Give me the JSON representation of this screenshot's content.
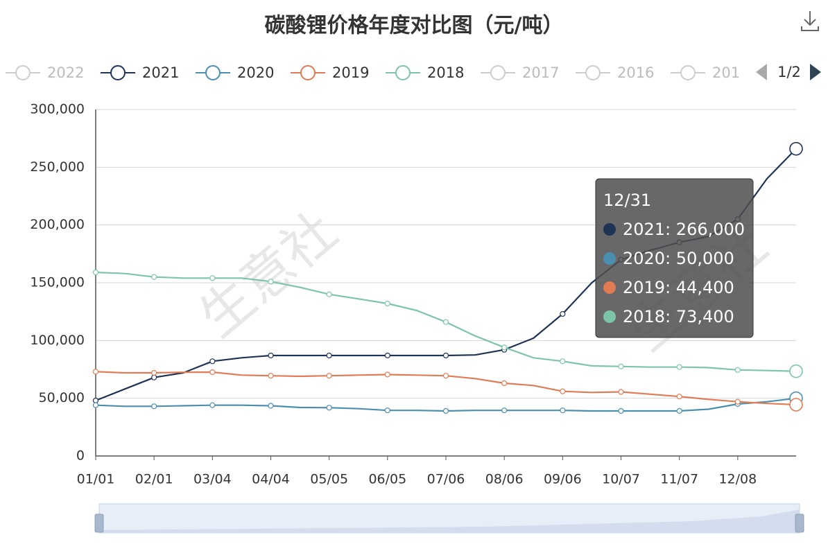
{
  "chart_data": {
    "type": "line",
    "title": "碳酸锂价格年度对比图（元/吨）",
    "categories": [
      "01/01",
      null,
      "02/01",
      null,
      "03/04",
      null,
      "04/04",
      null,
      "05/05",
      null,
      "06/05",
      null,
      "07/06",
      null,
      "08/06",
      null,
      "09/06",
      null,
      "10/07",
      null,
      "11/07",
      null,
      "12/08",
      null,
      "12/31"
    ],
    "series": [
      {
        "name": "2022",
        "color": "#cccccc",
        "visible": false
      },
      {
        "name": "2021",
        "color": "#1f3354",
        "visible": true,
        "values": [
          48000,
          58000,
          68000,
          72000,
          82000,
          85000,
          87000,
          87000,
          87000,
          87000,
          87000,
          87000,
          87000,
          87500,
          92000,
          102000,
          123000,
          150000,
          170000,
          178000,
          185000,
          190000,
          205000,
          240000,
          266000
        ]
      },
      {
        "name": "2020",
        "color": "#4a8fb0",
        "visible": true,
        "values": [
          44000,
          43000,
          43000,
          43500,
          44000,
          44000,
          43500,
          42000,
          41800,
          41000,
          39500,
          39500,
          39000,
          39500,
          39500,
          39500,
          39500,
          39000,
          39000,
          39000,
          39000,
          40500,
          45000,
          47000,
          50000
        ]
      },
      {
        "name": "2019",
        "color": "#e07b54",
        "visible": true,
        "values": [
          73000,
          72000,
          72000,
          72500,
          72600,
          70000,
          69500,
          69000,
          69500,
          70000,
          70500,
          70000,
          69500,
          67000,
          63000,
          61000,
          56000,
          55000,
          55500,
          53500,
          51500,
          49000,
          47000,
          45500,
          44400
        ]
      },
      {
        "name": "2018",
        "color": "#7cc5a9",
        "visible": true,
        "values": [
          159000,
          158000,
          155000,
          154000,
          154000,
          154000,
          151000,
          146000,
          140000,
          136000,
          132000,
          126000,
          116000,
          104000,
          94000,
          85000,
          82000,
          78000,
          77500,
          77000,
          77000,
          76500,
          74500,
          74000,
          73400
        ]
      },
      {
        "name": "2017",
        "color": "#cccccc",
        "visible": false
      },
      {
        "name": "2016",
        "color": "#cccccc",
        "visible": false
      },
      {
        "name": "201",
        "color": "#cccccc",
        "visible": false
      }
    ],
    "legend_page": "1/2",
    "ylim": [
      0,
      300000
    ],
    "yticks": [
      0,
      {
        "value": 50000,
        "label": "50,000"
      },
      {
        "value": 100000,
        "label": "100,000"
      },
      {
        "value": 150000,
        "label": "150,000"
      },
      {
        "value": 200000,
        "label": "200,000"
      },
      {
        "value": 250000,
        "label": "250,000"
      },
      {
        "value": 300000,
        "label": "300,000"
      }
    ],
    "grid": true,
    "tooltip": {
      "items": [
        "2021: 266,000",
        "2020: 50,000",
        "2019: 44,400",
        "2018: 73,400"
      ]
    },
    "watermark": "生意社"
  }
}
